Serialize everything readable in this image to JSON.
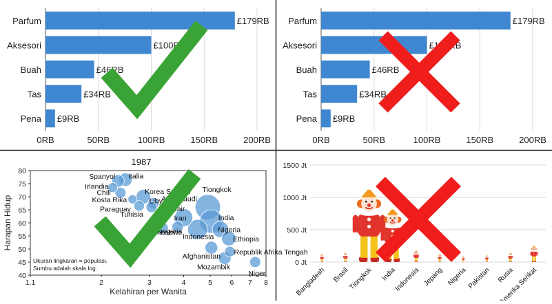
{
  "panels": {
    "top_left": {
      "mark": "check"
    },
    "top_right": {
      "mark": "cross"
    },
    "bottom_left": {
      "mark": "check"
    },
    "bottom_right": {
      "mark": "cross"
    }
  },
  "colors": {
    "bar": "#3f87d1",
    "bubble": "#5b9bd5",
    "check": "#3aa335",
    "cross": "#f01d1d",
    "grid": "#d9d9d9",
    "divider": "#222222",
    "clown_hat": "#f59a1f",
    "clown_hair": "#ef6b1f",
    "clown_suit": "#e0342c",
    "clown_pants": "#f4c21a"
  },
  "chart_data": [
    {
      "id": "bar-good",
      "type": "bar",
      "orientation": "horizontal",
      "categories": [
        "Parfum",
        "Aksesori",
        "Buah",
        "Tas",
        "Pena"
      ],
      "values": [
        179,
        100,
        46,
        34,
        9
      ],
      "data_labels": [
        "£179RB",
        "£100RB",
        "£46RB",
        "£34RB",
        "£9RB"
      ],
      "xticks": [
        "0RB",
        "50RB",
        "100RB",
        "150RB",
        "200RB"
      ],
      "xlim": [
        0,
        200
      ],
      "grid": true,
      "title": "",
      "xlabel": "",
      "ylabel": ""
    },
    {
      "id": "bar-bad",
      "type": "bar",
      "orientation": "horizontal",
      "categories": [
        "Parfum",
        "Aksesori",
        "Buah",
        "Tas",
        "Pena"
      ],
      "values": [
        179,
        100,
        46,
        34,
        9
      ],
      "data_labels": [
        "£179RB",
        "£100RB",
        "£46RB",
        "£34RB",
        "£9RB"
      ],
      "xticks": [
        "0RB",
        "50RB",
        "100RB",
        "150RB",
        "200RB"
      ],
      "xlim": [
        0,
        200
      ],
      "grid": true,
      "title": "",
      "xlabel": "",
      "ylabel": ""
    },
    {
      "id": "bubble",
      "type": "scatter",
      "title": "1987",
      "xlabel": "Kelahiran per Wanita",
      "ylabel": "Harapan Hidup",
      "x_scale": "log",
      "xlim": [
        1.1,
        8
      ],
      "ylim": [
        40,
        80
      ],
      "xticks": [
        "1.1",
        "2",
        "3",
        "4",
        "5",
        "6",
        "7",
        "8"
      ],
      "xtick_values": [
        1.1,
        2,
        3,
        4,
        5,
        6,
        7,
        8
      ],
      "yticks": [
        40,
        45,
        50,
        55,
        60,
        65,
        70,
        75,
        80
      ],
      "note": [
        "Ukuran lingkaran = populasi.",
        "Sumbu adalah skala log."
      ],
      "points": [
        {
          "label": "Spanyol",
          "x": 2.3,
          "y": 76,
          "size": 2
        },
        {
          "label": "Italia",
          "x": 2.45,
          "y": 76.5,
          "size": 2.2
        },
        {
          "label": "Irlandia",
          "x": 2.2,
          "y": 73.5,
          "size": 1.2
        },
        {
          "label": "Chili",
          "x": 2.35,
          "y": 71.5,
          "size": 1.5
        },
        {
          "label": "Korea Selatan",
          "x": 2.85,
          "y": 70,
          "size": 2.5
        },
        {
          "label": "Kosta Rika",
          "x": 2.6,
          "y": 69,
          "size": 1
        },
        {
          "label": "Libya",
          "x": 3.1,
          "y": 67.5,
          "size": 1.6
        },
        {
          "label": "Arab Saudi",
          "x": 3.55,
          "y": 67.5,
          "size": 2
        },
        {
          "label": "Paraguay",
          "x": 2.75,
          "y": 66.5,
          "size": 1.4
        },
        {
          "label": "Tunisia",
          "x": 3.05,
          "y": 66,
          "size": 1.5
        },
        {
          "label": "Aljazair",
          "x": 3.55,
          "y": 66,
          "size": 2
        },
        {
          "label": "Zimbabwe",
          "x": 3.35,
          "y": 58,
          "size": 1.6
        },
        {
          "label": "Iran",
          "x": 4.0,
          "y": 62,
          "size": 3.5
        },
        {
          "label": "Tiongkok",
          "x": 4.9,
          "y": 66,
          "size": 5.5
        },
        {
          "label": "India",
          "x": 5.05,
          "y": 60.5,
          "size": 5
        },
        {
          "label": "Nigeria",
          "x": 5.45,
          "y": 57.5,
          "size": 3
        },
        {
          "label": "Hungaria",
          "x": 3.8,
          "y": 58.5,
          "size": 1.6
        },
        {
          "label": "Indonesia",
          "x": 4.5,
          "y": 57.5,
          "size": 4
        },
        {
          "label": "Ethiopia",
          "x": 5.85,
          "y": 54,
          "size": 2.5
        },
        {
          "label": "Afghanistan",
          "x": 5.05,
          "y": 50.5,
          "size": 2
        },
        {
          "label": "Republik Afrika Tengah",
          "x": 5.9,
          "y": 49,
          "size": 1.4
        },
        {
          "label": "Mozambik",
          "x": 5.65,
          "y": 46.5,
          "size": 2
        },
        {
          "label": "Niger",
          "x": 7.3,
          "y": 45,
          "size": 1.5
        }
      ]
    },
    {
      "id": "pictograph",
      "type": "bar",
      "categories": [
        "Bangladesh",
        "Brasil",
        "Tiongkok",
        "India",
        "Indonesia",
        "Jepang",
        "Nigeria",
        "Pakistan",
        "Rusia",
        "Amerika Serikat"
      ],
      "values": [
        120,
        145,
        1100,
        800,
        175,
        122,
        90,
        105,
        145,
        245
      ],
      "yticks": [
        "0 Jt",
        "500 Jt",
        "1000 Jt",
        "1500 Jt"
      ],
      "ytick_values": [
        0,
        500,
        1000,
        1500
      ],
      "ylim": [
        0,
        1500
      ],
      "title": "",
      "xlabel": "",
      "ylabel": ""
    }
  ]
}
